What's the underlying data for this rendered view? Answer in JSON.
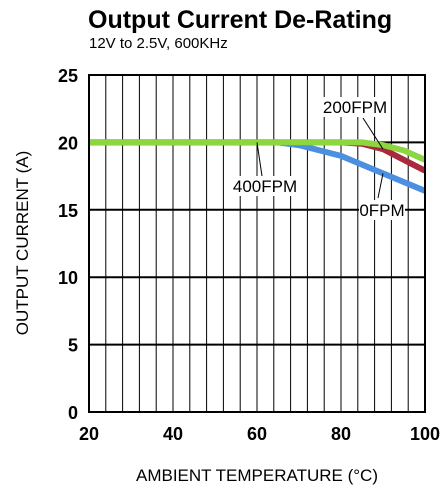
{
  "chart_data": {
    "type": "line",
    "title": "Output Current De-Rating",
    "subtitle": "12V to 2.5V, 600KHz",
    "xlabel": "AMBIENT TEMPERATURE (°C)",
    "ylabel": "OUTPUT CURRENT (A)",
    "xlim": [
      20,
      100
    ],
    "ylim": [
      0,
      25
    ],
    "xticks": [
      20,
      40,
      60,
      80,
      100
    ],
    "yticks": [
      0,
      5,
      10,
      15,
      20,
      25
    ],
    "grid": true,
    "series": [
      {
        "name": "0FPM",
        "color": "#4a8fe0",
        "x": [
          20,
          40,
          60,
          65,
          70,
          80,
          90,
          100
        ],
        "y": [
          20,
          20,
          20,
          20,
          19.8,
          19.0,
          17.7,
          16.4
        ]
      },
      {
        "name": "200FPM",
        "color": "#a82a3c",
        "x": [
          20,
          40,
          60,
          70,
          80,
          85,
          90,
          95,
          100
        ],
        "y": [
          20,
          20,
          20,
          20,
          20,
          19.9,
          19.5,
          18.7,
          17.9
        ]
      },
      {
        "name": "400FPM",
        "color": "#8cd640",
        "x": [
          20,
          40,
          60,
          70,
          80,
          85,
          90,
          95,
          100
        ],
        "y": [
          20,
          20,
          20,
          20,
          20,
          20,
          19.8,
          19.4,
          18.7
        ]
      }
    ],
    "annotations": [
      {
        "text": "200FPM",
        "series": "200FPM"
      },
      {
        "text": "400FPM",
        "series": "400FPM"
      },
      {
        "text": "0FPM",
        "series": "0FPM"
      }
    ]
  }
}
